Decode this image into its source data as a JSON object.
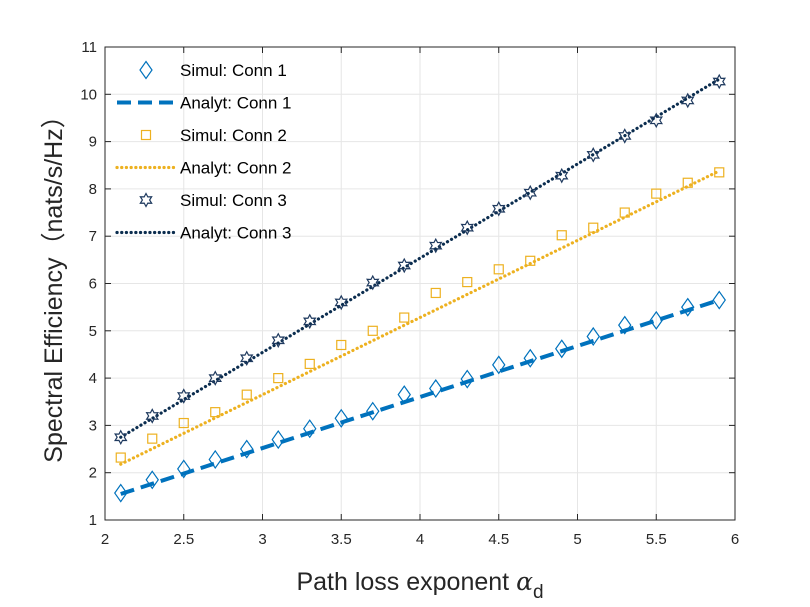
{
  "chart_data": {
    "type": "line",
    "title": "",
    "xlabel": "Path loss exponent",
    "xlabel_symbol": "α",
    "xlabel_subscript": "d",
    "ylabel": "Spectral Efficiency（nats/s/Hz）",
    "xlim": [
      2,
      6
    ],
    "ylim": [
      1,
      11
    ],
    "xticks": [
      2,
      2.5,
      3,
      3.5,
      4,
      4.5,
      5,
      5.5,
      6
    ],
    "xtick_labels": [
      "2",
      "2.5",
      "3",
      "3.5",
      "4",
      "4.5",
      "5",
      "5.5",
      "6"
    ],
    "yticks": [
      1,
      2,
      3,
      4,
      5,
      6,
      7,
      8,
      9,
      10,
      11
    ],
    "ytick_labels": [
      "1",
      "2",
      "3",
      "4",
      "5",
      "6",
      "7",
      "8",
      "9",
      "10",
      "11"
    ],
    "grid": true,
    "legend_position": "top-left",
    "sim_x": [
      2.1,
      2.3,
      2.5,
      2.7,
      2.9,
      3.1,
      3.3,
      3.5,
      3.7,
      3.9,
      4.1,
      4.3,
      4.5,
      4.7,
      4.9,
      5.1,
      5.3,
      5.5,
      5.7,
      5.9
    ],
    "series": [
      {
        "name": "Simul:  Conn 1",
        "kind": "marker",
        "marker": "diamond",
        "color": "#0072BD",
        "values": [
          1.57,
          1.85,
          2.08,
          2.28,
          2.5,
          2.7,
          2.93,
          3.15,
          3.3,
          3.65,
          3.78,
          3.98,
          4.28,
          4.42,
          4.62,
          4.88,
          5.12,
          5.22,
          5.5,
          5.65
        ]
      },
      {
        "name": "Analyt: Conn 1",
        "kind": "line",
        "dash": "dashed",
        "color": "#0072BD",
        "x": [
          2.1,
          5.9
        ],
        "values": [
          1.55,
          5.65
        ]
      },
      {
        "name": "Simul:  Conn 2",
        "kind": "marker",
        "marker": "square",
        "color": "#EDB120",
        "values": [
          2.32,
          2.72,
          3.05,
          3.28,
          3.65,
          4.0,
          4.3,
          4.7,
          5.0,
          5.28,
          5.8,
          6.03,
          6.3,
          6.48,
          7.02,
          7.18,
          7.5,
          7.9,
          8.13,
          8.35
        ]
      },
      {
        "name": "Analyt: Conn 2",
        "kind": "line",
        "dash": "dotted",
        "color": "#EDB120",
        "x": [
          2.1,
          5.9
        ],
        "values": [
          2.18,
          8.38
        ]
      },
      {
        "name": "Simul:  Conn 3",
        "kind": "marker",
        "marker": "hexagram",
        "color": "#1F3A5F",
        "values": [
          2.75,
          3.2,
          3.62,
          4.0,
          4.42,
          4.8,
          5.2,
          5.6,
          6.02,
          6.38,
          6.8,
          7.18,
          7.58,
          7.92,
          8.28,
          8.72,
          9.12,
          9.45,
          9.87,
          10.27
        ]
      },
      {
        "name": "Analyt: Conn 3",
        "kind": "line",
        "dash": "dotted",
        "color": "#0B2D4F",
        "x": [
          2.1,
          5.9
        ],
        "values": [
          2.75,
          10.32
        ]
      }
    ]
  }
}
